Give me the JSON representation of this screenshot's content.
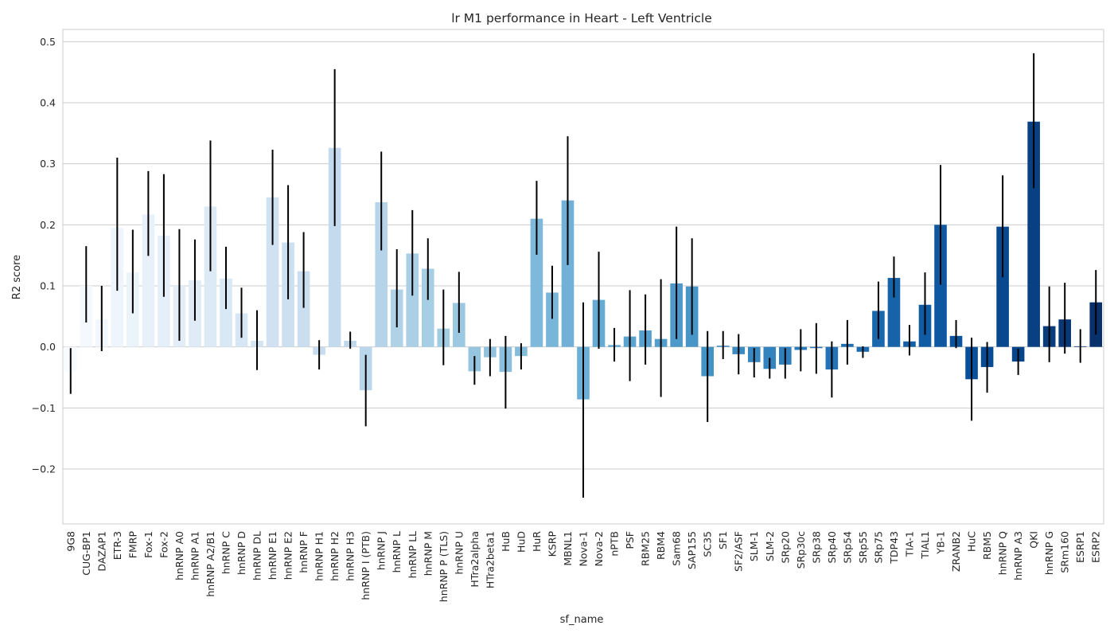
{
  "chart_data": {
    "type": "bar",
    "title": "lr M1 performance in Heart - Left Ventricle",
    "xlabel": "sf_name",
    "ylabel": "R2 score",
    "ylim": [
      -0.29,
      0.52
    ],
    "yticks": [
      -0.2,
      -0.1,
      0.0,
      0.1,
      0.2,
      0.3,
      0.4,
      0.5
    ],
    "ytick_labels": [
      "−0.2",
      "−0.1",
      "0.0",
      "0.1",
      "0.2",
      "0.3",
      "0.4",
      "0.5"
    ],
    "grid": true,
    "palette": "Blues",
    "categories": [
      "9G8",
      "CUG-BP1",
      "DAZAP1",
      "ETR-3",
      "FMRP",
      "Fox-1",
      "Fox-2",
      "hnRNP A0",
      "hnRNP A1",
      "hnRNP A2/B1",
      "hnRNP C",
      "hnRNP D",
      "hnRNP DL",
      "hnRNP E1",
      "hnRNP E2",
      "hnRNP F",
      "hnRNP H1",
      "hnRNP H2",
      "hnRNP H3",
      "hnRNP I (PTB)",
      "hnRNP J",
      "hnRNP L",
      "hnRNP LL",
      "hnRNP M",
      "hnRNP P (TLS)",
      "hnRNP U",
      "HTra2alpha",
      "HTra2beta1",
      "HuB",
      "HuD",
      "HuR",
      "KSRP",
      "MBNL1",
      "Nova-1",
      "Nova-2",
      "nPTB",
      "PSF",
      "RBM25",
      "RBM4",
      "Sam68",
      "SAP155",
      "SC35",
      "SF1",
      "SF2/ASF",
      "SLM-1",
      "SLM-2",
      "SRp20",
      "SRp30c",
      "SRp38",
      "SRp40",
      "SRp54",
      "SRp55",
      "SRp75",
      "TDP43",
      "TIA-1",
      "TIAL1",
      "YB-1",
      "ZRANB2",
      "HuC",
      "RBM5",
      "hnRNP Q",
      "hnRNP A3",
      "QKI",
      "hnRNP G",
      "SRm160",
      "ESRP1",
      "ESRP2"
    ],
    "values": [
      -0.04,
      0.1,
      0.045,
      0.195,
      0.122,
      0.217,
      0.182,
      0.1,
      0.109,
      0.23,
      0.112,
      0.055,
      0.01,
      0.245,
      0.171,
      0.124,
      -0.013,
      0.326,
      0.01,
      -0.071,
      0.237,
      0.094,
      0.153,
      0.128,
      0.03,
      0.072,
      -0.04,
      -0.017,
      -0.041,
      -0.015,
      0.21,
      0.089,
      0.24,
      -0.086,
      0.077,
      0.003,
      0.017,
      0.027,
      0.013,
      0.104,
      0.099,
      -0.048,
      0.002,
      -0.012,
      -0.025,
      -0.036,
      -0.029,
      -0.005,
      -0.002,
      -0.037,
      0.005,
      -0.008,
      0.059,
      0.113,
      0.009,
      0.069,
      0.2,
      0.018,
      -0.053,
      -0.033,
      0.197,
      -0.024,
      0.369,
      0.034,
      0.045,
      0.001,
      0.073
    ],
    "ci_low": [
      -0.077,
      0.04,
      -0.007,
      0.092,
      0.055,
      0.149,
      0.082,
      0.01,
      0.043,
      0.124,
      0.062,
      0.015,
      -0.038,
      0.167,
      0.078,
      0.064,
      -0.037,
      0.198,
      -0.003,
      -0.13,
      0.158,
      0.032,
      0.084,
      0.077,
      -0.03,
      0.023,
      -0.062,
      -0.048,
      -0.101,
      -0.037,
      0.151,
      0.046,
      0.134,
      -0.247,
      -0.003,
      -0.024,
      -0.056,
      -0.029,
      -0.082,
      0.013,
      0.02,
      -0.123,
      -0.02,
      -0.045,
      -0.05,
      -0.052,
      -0.052,
      -0.04,
      -0.044,
      -0.083,
      -0.029,
      -0.018,
      0.013,
      0.081,
      -0.014,
      0.02,
      0.102,
      -0.002,
      -0.121,
      -0.075,
      0.114,
      -0.046,
      0.26,
      -0.025,
      -0.011,
      -0.026,
      0.02
    ],
    "ci_high": [
      -0.002,
      0.165,
      0.1,
      0.31,
      0.192,
      0.288,
      0.283,
      0.193,
      0.176,
      0.338,
      0.164,
      0.097,
      0.06,
      0.323,
      0.265,
      0.188,
      0.011,
      0.455,
      0.025,
      -0.013,
      0.32,
      0.16,
      0.224,
      0.178,
      0.094,
      0.123,
      -0.015,
      0.013,
      0.018,
      0.006,
      0.272,
      0.133,
      0.345,
      0.073,
      0.156,
      0.031,
      0.093,
      0.086,
      0.111,
      0.197,
      0.178,
      0.026,
      0.026,
      0.021,
      -0.002,
      -0.018,
      -0.002,
      0.029,
      0.039,
      0.009,
      0.044,
      0.001,
      0.107,
      0.148,
      0.036,
      0.122,
      0.298,
      0.044,
      0.015,
      0.008,
      0.281,
      -0.003,
      0.481,
      0.099,
      0.105,
      0.029,
      0.126
    ]
  }
}
